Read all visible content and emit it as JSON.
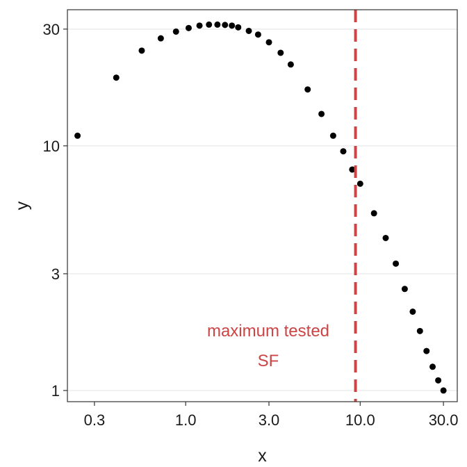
{
  "chart_data": {
    "type": "scatter",
    "title": "",
    "xlabel": "x",
    "ylabel": "y",
    "x_scale": "log",
    "y_scale": "log",
    "xlim": [
      0.21,
      36
    ],
    "ylim": [
      0.9,
      36
    ],
    "x_ticks": [
      0.3,
      1.0,
      3.0,
      10.0,
      30.0
    ],
    "x_tick_labels": [
      "0.3",
      "1.0",
      "3.0",
      "10.0",
      "30.0"
    ],
    "y_ticks": [
      1,
      3,
      10,
      30
    ],
    "y_tick_labels": [
      "1",
      "3",
      "10",
      "30"
    ],
    "grid": "horizontal major",
    "point_color": "#000000",
    "series": [
      {
        "x": [
          0.24,
          0.4,
          0.56,
          0.72,
          0.88,
          1.04,
          1.2,
          1.36,
          1.52,
          1.68,
          1.84,
          2.0,
          2.3,
          2.6,
          3.0,
          3.5,
          4.0,
          5.0,
          6.0,
          7.0,
          8.0,
          9.0,
          10.0,
          12.0,
          14.0,
          16.0,
          18.0,
          20.0,
          22.0,
          24.0,
          26.0,
          28.0,
          30.0
        ],
        "y": [
          11.0,
          19.0,
          24.5,
          27.5,
          29.3,
          30.3,
          31.0,
          31.3,
          31.3,
          31.2,
          31.0,
          30.5,
          29.5,
          28.5,
          26.5,
          24.0,
          21.5,
          17.0,
          13.5,
          11.0,
          9.5,
          8.0,
          7.0,
          5.3,
          4.2,
          3.3,
          2.6,
          2.1,
          1.75,
          1.45,
          1.25,
          1.1,
          1.0
        ]
      }
    ],
    "reference_line": {
      "x": 9.4,
      "color": "#cc4444",
      "style": "dashed",
      "label_lines": [
        "maximum tested",
        "SF"
      ]
    }
  }
}
